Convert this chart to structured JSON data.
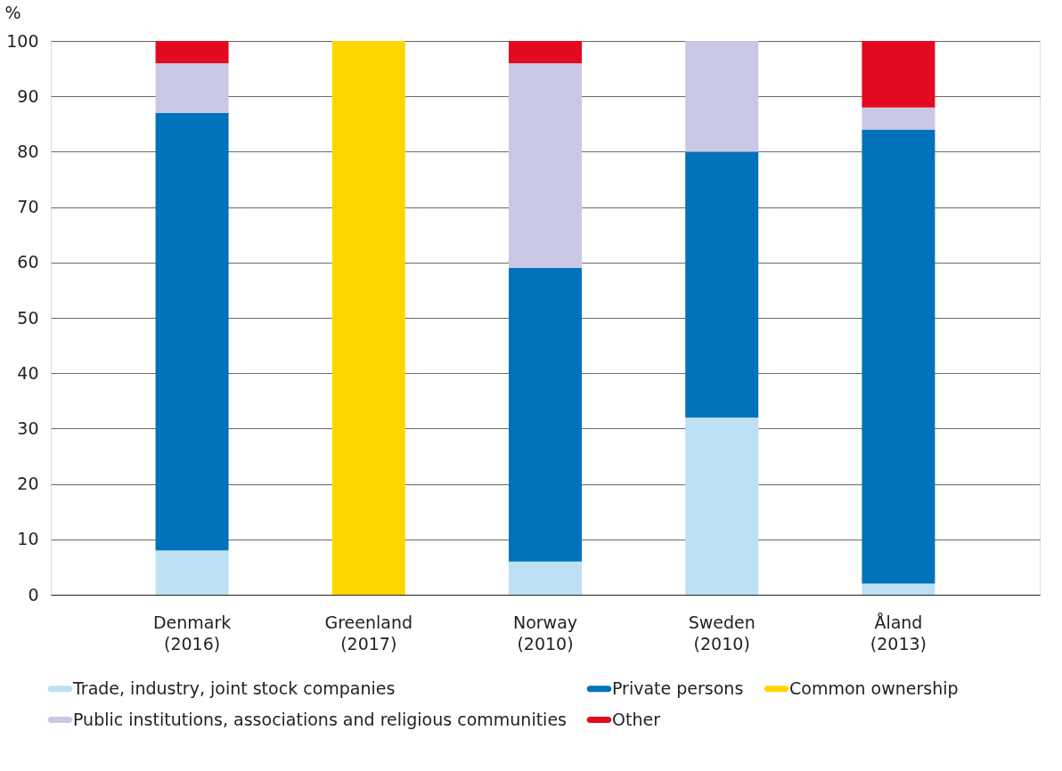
{
  "chart_data": {
    "type": "bar",
    "stacked": true,
    "ylabel": "%",
    "categories": [
      "Denmark (2016)",
      "Greenland (2017)",
      "Norway (2010)",
      "Sweden (2010)",
      "Åland (2013)"
    ],
    "series": [
      {
        "name": "Trade, industry, joint stock companies",
        "color": "#bde0f5",
        "values": [
          8,
          null,
          6,
          32,
          2
        ]
      },
      {
        "name": "Private persons",
        "color": "#0072bc",
        "values": [
          79,
          null,
          53,
          48,
          82
        ]
      },
      {
        "name": "Common ownership",
        "color": "#ffd500",
        "values": [
          null,
          100,
          null,
          null,
          null
        ]
      },
      {
        "name": "Public institutions, associations and religious communities",
        "color": "#c8c8e4",
        "values": [
          9,
          null,
          37,
          20,
          4
        ]
      },
      {
        "name": "Other",
        "color": "#e30a20",
        "values": [
          4,
          null,
          4,
          null,
          12
        ]
      }
    ],
    "ylim": [
      0,
      100
    ],
    "yticks": [
      0,
      10,
      20,
      30,
      40,
      50,
      60,
      70,
      80,
      90,
      100
    ],
    "grid": "y",
    "legend": "bottom"
  }
}
